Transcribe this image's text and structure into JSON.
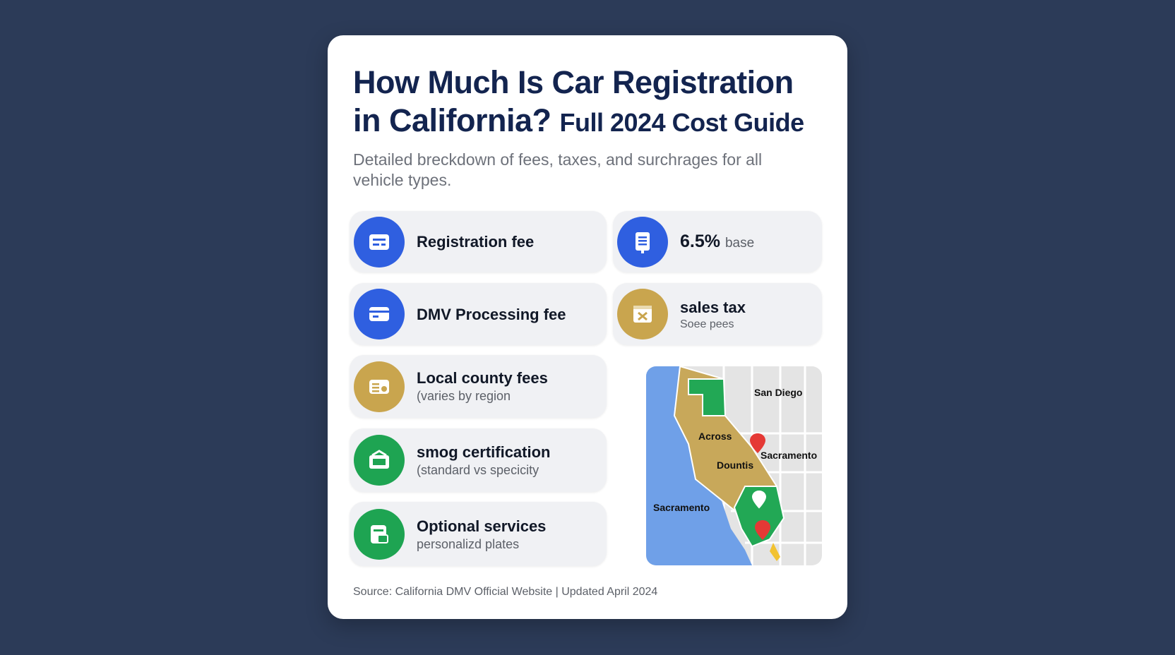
{
  "header": {
    "title_line1": "How Much Is Car Registration",
    "title_line2": "in California?",
    "title_suffix": "Full 2024 Cost Guide",
    "subtitle": "Detailed breckdown of fees, taxes, and surchrages for all vehicle types."
  },
  "items": [
    {
      "label": "Registration fee"
    },
    {
      "label": "DMV Processing fee"
    },
    {
      "label": "Local county fees",
      "detail": "(varies by region"
    },
    {
      "label": "smog certification",
      "detail": "(standard vs specicity"
    },
    {
      "label": "Optional services",
      "detail": "personalizd plates"
    }
  ],
  "side_items": [
    {
      "value": "6.5%",
      "label": "base"
    },
    {
      "label": "sales tax",
      "detail": "Soee pees"
    }
  ],
  "map": {
    "labels": [
      "San Diego",
      "Across",
      "Sacramento",
      "Dountis",
      "Sacramento"
    ]
  },
  "footer": {
    "source": "Source: California DMV Official Website | Updated April 2024"
  }
}
